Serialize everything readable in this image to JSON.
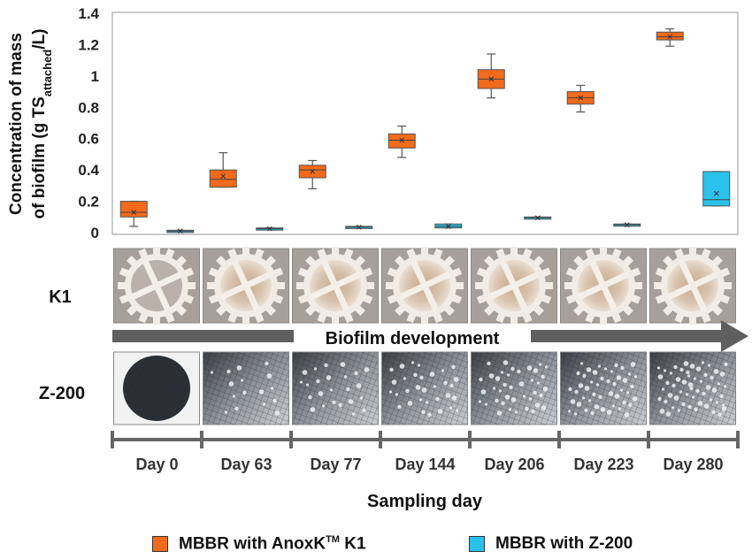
{
  "chart_data": {
    "type": "box",
    "ylabel_line1": "Concentration of mass",
    "ylabel_line2_prefix": "of biofilm (g TS",
    "ylabel_line2_sub": "attached",
    "ylabel_line2_suffix": "/L)",
    "ylim": [
      0,
      1.4
    ],
    "yticks": [
      0,
      0.2,
      0.4,
      0.6,
      0.8,
      1,
      1.2,
      1.4
    ],
    "ytick_labels": [
      "0",
      "0.2",
      "0.4",
      "0.6",
      "0.8",
      "1",
      "1.2",
      "1.4"
    ],
    "categories": [
      "Day 0",
      "Day 63",
      "Day 77",
      "Day 144",
      "Day 206",
      "Day 223",
      "Day 280"
    ],
    "xlabel": "Sampling day",
    "series": [
      {
        "name": "MBBR with AnoxK™ K1",
        "color": "#F26A1B",
        "boxes": [
          {
            "min": 0.04,
            "q1": 0.1,
            "median": 0.13,
            "q3": 0.2,
            "max": 0.2,
            "mean": 0.13
          },
          {
            "min": 0.29,
            "q1": 0.29,
            "median": 0.34,
            "q3": 0.4,
            "max": 0.51,
            "mean": 0.36
          },
          {
            "min": 0.28,
            "q1": 0.35,
            "median": 0.4,
            "q3": 0.43,
            "max": 0.46,
            "mean": 0.39
          },
          {
            "min": 0.48,
            "q1": 0.54,
            "median": 0.59,
            "q3": 0.63,
            "max": 0.68,
            "mean": 0.59
          },
          {
            "min": 0.86,
            "q1": 0.92,
            "median": 0.98,
            "q3": 1.04,
            "max": 1.14,
            "mean": 0.98
          },
          {
            "min": 0.77,
            "q1": 0.82,
            "median": 0.86,
            "q3": 0.9,
            "max": 0.94,
            "mean": 0.86
          },
          {
            "min": 1.19,
            "q1": 1.23,
            "median": 1.25,
            "q3": 1.28,
            "max": 1.3,
            "mean": 1.25
          }
        ]
      },
      {
        "name": "MBBR with Z-200",
        "color": "#29C2EA",
        "boxes": [
          {
            "min": 0.01,
            "q1": 0.01,
            "median": 0.01,
            "q3": 0.015,
            "max": 0.015,
            "mean": 0.01
          },
          {
            "min": 0.02,
            "q1": 0.02,
            "median": 0.025,
            "q3": 0.03,
            "max": 0.03,
            "mean": 0.025
          },
          {
            "min": 0.03,
            "q1": 0.03,
            "median": 0.035,
            "q3": 0.04,
            "max": 0.04,
            "mean": 0.035
          },
          {
            "min": 0.03,
            "q1": 0.03,
            "median": 0.04,
            "q3": 0.055,
            "max": 0.055,
            "mean": 0.04
          },
          {
            "min": 0.09,
            "q1": 0.09,
            "median": 0.095,
            "q3": 0.1,
            "max": 0.1,
            "mean": 0.095
          },
          {
            "min": 0.045,
            "q1": 0.045,
            "median": 0.05,
            "q3": 0.055,
            "max": 0.055,
            "mean": 0.05
          },
          {
            "min": 0.17,
            "q1": 0.17,
            "median": 0.21,
            "q3": 0.39,
            "max": 0.39,
            "mean": 0.25
          }
        ]
      }
    ],
    "grid": false
  },
  "rows": {
    "k1_label": "K1",
    "z200_label": "Z-200",
    "arrow_label": "Biofilm development"
  },
  "legend": {
    "k1_prefix": "MBBR with AnoxK",
    "k1_tm": "TM",
    "k1_suffix": " K1",
    "z200": "MBBR with Z-200"
  }
}
